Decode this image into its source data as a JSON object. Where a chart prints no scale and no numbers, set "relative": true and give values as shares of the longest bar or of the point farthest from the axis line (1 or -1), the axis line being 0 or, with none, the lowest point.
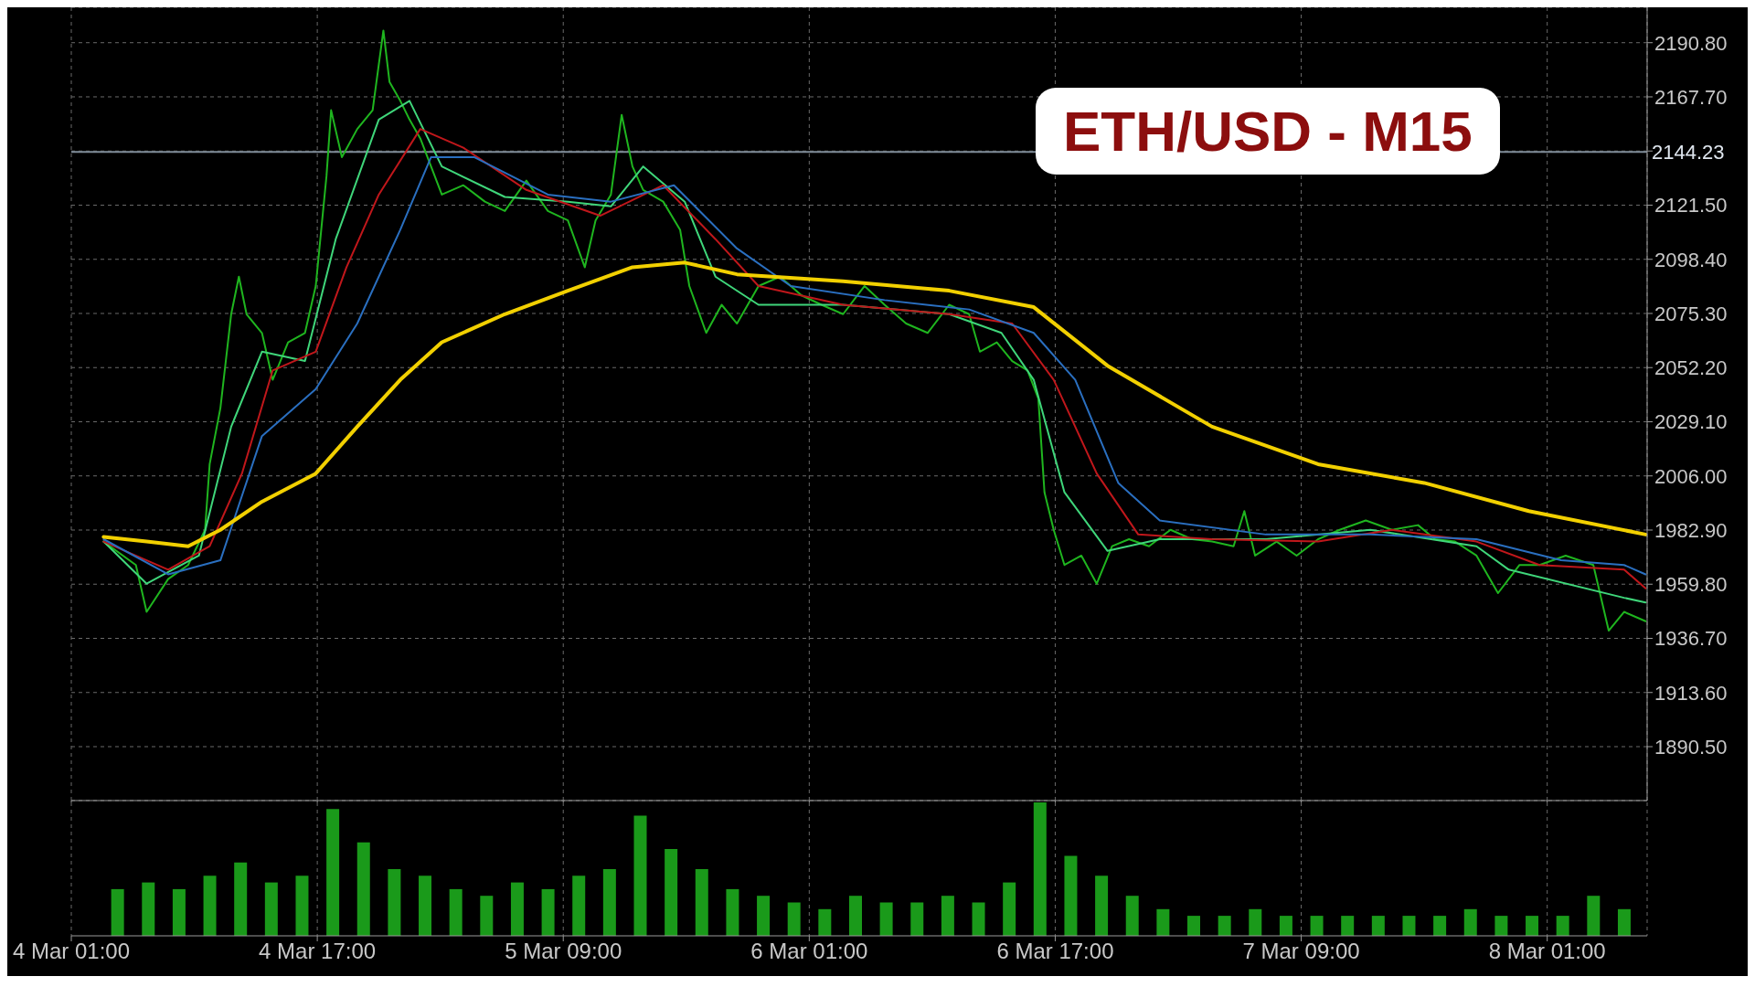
{
  "chart_data": [
    {
      "type": "line",
      "title": "ETH/USD - M15",
      "xlim": [
        "--03-04T01:00",
        "--03-08T07:30"
      ],
      "xticks": [
        "--03-04T01:00",
        "--03-04T17:00",
        "--03-05T09:00",
        "--03-06T01:00",
        "--03-06T17:00",
        "--03-07T09:00",
        "--03-08T01:00"
      ],
      "ylim": [
        1867.5,
        2205.9
      ],
      "yticks": [
        {
          "value": 1890.5,
          "label": "1890.50"
        },
        {
          "value": 1913.6,
          "label": "1913.60"
        },
        {
          "value": 1936.7,
          "label": "1936.70"
        },
        {
          "value": 1959.8,
          "label": "1959.80"
        },
        {
          "value": 1982.9,
          "label": "1982.90"
        },
        {
          "value": 2006,
          "label": "2006.00"
        },
        {
          "value": 2029.1,
          "label": "2029.10"
        },
        {
          "value": 2052.2,
          "label": "2052.20"
        },
        {
          "value": 2075.3,
          "label": "2075.30"
        },
        {
          "value": 2098.4,
          "label": "2098.40"
        },
        {
          "value": 2121.5,
          "label": "2121.50"
        },
        {
          "value": 2144.6,
          "label": null
        },
        {
          "value": 2167.7,
          "label": "2167.70"
        },
        {
          "value": 2190.8,
          "label": "2190.80"
        }
      ],
      "grid": true,
      "tick_labels": "y",
      "ref_lines": [
        {
          "axis": "y",
          "value": 2144.23,
          "label": "2144.23",
          "color": "#7f8c99"
        }
      ],
      "series": [
        {
          "color": "#1fb51f",
          "x": [
            "--03-04T03:06",
            "--03-04T05:12",
            "--03-04T05:54",
            "--03-04T07:18",
            "--03-04T08:36",
            "--03-04T09:42",
            "--03-04T10:00",
            "--03-04T10:42",
            "--03-04T11:24",
            "--03-04T11:54",
            "--03-04T12:24",
            "--03-04T13:24",
            "--03-04T14:06",
            "--03-04T15:06",
            "--03-04T16:12",
            "--03-04T16:54",
            "--03-04T17:36",
            "--03-04T17:54",
            "--03-04T18:36",
            "--03-04T19:36",
            "--03-04T20:36",
            "--03-04T21:18",
            "--03-04T21:42",
            "--03-04T22:24",
            "--03-04T23:00",
            "--03-04T23:42",
            "--03-05T00:24",
            "--03-05T01:06",
            "--03-05T02:30",
            "--03-05T03:54",
            "--03-05T05:12",
            "--03-05T06:36",
            "--03-05T08:00",
            "--03-05T09:18",
            "--03-05T10:24",
            "--03-05T11:06",
            "--03-05T12:06",
            "--03-05T12:48",
            "--03-05T13:30",
            "--03-05T14:12",
            "--03-05T15:30",
            "--03-05T16:36",
            "--03-05T17:12",
            "--03-05T18:18",
            "--03-05T19:18",
            "--03-05T20:18",
            "--03-05T21:42",
            "--03-05T23:06",
            "--03-06T00:30",
            "--03-06T01:48",
            "--03-06T03:12",
            "--03-06T04:36",
            "--03-06T05:54",
            "--03-06T07:18",
            "--03-06T08:42",
            "--03-06T10:06",
            "--03-06T11:24",
            "--03-06T12:06",
            "--03-06T13:12",
            "--03-06T14:12",
            "--03-06T15:12",
            "--03-06T15:54",
            "--03-06T16:18",
            "--03-06T16:54",
            "--03-06T17:36",
            "--03-06T18:42",
            "--03-06T19:42",
            "--03-06T20:42",
            "--03-06T21:48",
            "--03-06T23:06",
            "--03-07T00:30",
            "--03-07T01:54",
            "--03-07T03:12",
            "--03-07T04:36",
            "--03-07T05:18",
            "--03-07T06:00",
            "--03-07T07:24",
            "--03-07T08:42",
            "--03-07T10:06",
            "--03-07T11:30",
            "--03-07T13:12",
            "--03-07T14:54",
            "--03-07T16:36",
            "--03-07T17:42",
            "--03-07T19:00",
            "--03-07T20:24",
            "--03-07T21:48",
            "--03-07T23:12",
            "--03-08T00:30",
            "--03-08T02:12",
            "--03-08T04:00",
            "--03-08T05:00",
            "--03-08T06:00",
            "--03-08T07:24"
          ],
          "values": [
            1978,
            1968,
            1948,
            1962,
            1968,
            1983,
            2011,
            2035,
            2075,
            2091,
            2075,
            2067,
            2047,
            2063,
            2067,
            2087,
            2134,
            2162,
            2142,
            2154,
            2162,
            2196,
            2174,
            2166,
            2158,
            2150,
            2138,
            2126,
            2130,
            2123,
            2119,
            2132,
            2119,
            2115,
            2095,
            2115,
            2126,
            2160,
            2138,
            2128,
            2123,
            2111,
            2087,
            2067,
            2079,
            2071,
            2087,
            2091,
            2083,
            2079,
            2075,
            2087,
            2079,
            2071,
            2067,
            2079,
            2075,
            2059,
            2063,
            2055,
            2051,
            2039,
            1999,
            1983,
            1968,
            1972,
            1960,
            1976,
            1979,
            1976,
            1983,
            1979,
            1978,
            1976,
            1991,
            1972,
            1978,
            1972,
            1979,
            1983,
            1987,
            1983,
            1985,
            1979,
            1978,
            1972,
            1956,
            1968,
            1968,
            1972,
            1968,
            1940,
            1948,
            1944
          ]
        },
        {
          "color": "#3fd67a",
          "x": [
            "--03-04T03:06",
            "--03-04T05:54",
            "--03-04T09:18",
            "--03-04T11:24",
            "--03-04T13:24",
            "--03-04T16:12",
            "--03-04T18:12",
            "--03-04T21:00",
            "--03-04T23:00",
            "--03-05T01:06",
            "--03-05T05:12",
            "--03-05T09:18",
            "--03-05T12:06",
            "--03-05T14:12",
            "--03-05T16:54",
            "--03-05T18:54",
            "--03-05T21:42",
            "--03-06T03:12",
            "--03-06T10:06",
            "--03-06T13:30",
            "--03-06T15:36",
            "--03-06T17:36",
            "--03-06T20:24",
            "--03-06T23:48",
            "--03-07T06:42",
            "--03-07T13:30",
            "--03-07T20:24",
            "--03-07T22:30",
            "--03-08T06:00",
            "--03-08T07:24"
          ],
          "values": [
            1978,
            1960,
            1972,
            2027,
            2059,
            2055,
            2107,
            2158,
            2166,
            2138,
            2125,
            2123,
            2121,
            2138,
            2123,
            2091,
            2079,
            2079,
            2075,
            2067,
            2047,
            1999,
            1974,
            1979,
            1979,
            1983,
            1976,
            1966,
            1954,
            1952
          ]
        },
        {
          "color": "#c0171b",
          "x": [
            "--03-04T03:06",
            "--03-04T07:18",
            "--03-04T10:00",
            "--03-04T12:06",
            "--03-04T14:06",
            "--03-04T16:54",
            "--03-04T18:54",
            "--03-04T21:00",
            "--03-04T23:42",
            "--03-05T02:30",
            "--03-05T06:36",
            "--03-05T11:24",
            "--03-05T15:30",
            "--03-05T18:54",
            "--03-05T21:42",
            "--03-06T03:12",
            "--03-06T10:06",
            "--03-06T14:12",
            "--03-06T16:54",
            "--03-06T19:42",
            "--03-06T22:24",
            "--03-07T03:12",
            "--03-07T10:06",
            "--03-07T14:54",
            "--03-07T20:24",
            "--03-08T00:30",
            "--03-08T06:00",
            "--03-08T07:24"
          ],
          "values": [
            1978,
            1966,
            1976,
            2007,
            2051,
            2059,
            2095,
            2126,
            2154,
            2146,
            2128,
            2117,
            2130,
            2107,
            2087,
            2079,
            2075,
            2071,
            2047,
            2007,
            1981,
            1979,
            1978,
            1983,
            1978,
            1968,
            1966,
            1958
          ]
        },
        {
          "color": "#2a6fc0",
          "x": [
            "--03-04T03:06",
            "--03-04T07:18",
            "--03-04T10:42",
            "--03-04T13:24",
            "--03-04T16:54",
            "--03-04T19:36",
            "--03-04T22:24",
            "--03-05T00:24",
            "--03-05T03:12",
            "--03-05T08:00",
            "--03-05T12:06",
            "--03-05T16:12",
            "--03-05T20:18",
            "--03-05T23:48",
            "--03-06T05:54",
            "--03-06T11:24",
            "--03-06T15:36",
            "--03-06T18:18",
            "--03-06T21:06",
            "--03-06T23:48",
            "--03-07T06:42",
            "--03-07T13:30",
            "--03-07T20:24",
            "--03-08T01:54",
            "--03-08T06:00",
            "--03-08T07:24"
          ],
          "values": [
            1979,
            1964,
            1970,
            2023,
            2043,
            2071,
            2111,
            2142,
            2142,
            2126,
            2123,
            2130,
            2103,
            2087,
            2081,
            2077,
            2067,
            2047,
            2003,
            1987,
            1981,
            1981,
            1979,
            1970,
            1968,
            1964
          ]
        },
        {
          "color": "#f2d000",
          "x": [
            "--03-04T03:06",
            "--03-04T05:54",
            "--03-04T08:36",
            "--03-04T10:42",
            "--03-04T13:24",
            "--03-04T16:54",
            "--03-04T19:36",
            "--03-04T22:24",
            "--03-05T01:06",
            "--03-05T05:12",
            "--03-05T09:18",
            "--03-05T13:30",
            "--03-05T16:54",
            "--03-05T20:18",
            "--03-06T03:12",
            "--03-06T10:06",
            "--03-06T15:36",
            "--03-06T20:24",
            "--03-07T03:12",
            "--03-07T10:06",
            "--03-07T17:00",
            "--03-07T23:48",
            "--03-08T07:24"
          ],
          "values": [
            1980,
            1978,
            1976,
            1983,
            1995,
            2007,
            2027,
            2047,
            2063,
            2075,
            2085,
            2095,
            2097,
            2092,
            2089,
            2085,
            2078,
            2053,
            2027,
            2011,
            2003,
            1991,
            1981
          ]
        }
      ]
    },
    {
      "type": "bar",
      "relative": true,
      "color": "#1a9a1a",
      "xlim": [
        "--03-04T01:00",
        "--03-08T07:30"
      ],
      "xticks": [
        {
          "value": "--03-04T01:00",
          "label": "4 Mar 01:00"
        },
        {
          "value": "--03-04T17:00",
          "label": "4 Mar 17:00"
        },
        {
          "value": "--03-05T09:00",
          "label": "5 Mar 09:00"
        },
        {
          "value": "--03-06T01:00",
          "label": "6 Mar 01:00"
        },
        {
          "value": "--03-06T17:00",
          "label": "6 Mar 17:00"
        },
        {
          "value": "--03-07T09:00",
          "label": "7 Mar 09:00"
        },
        {
          "value": "--03-08T01:00",
          "label": "8 Mar 01:00"
        }
      ],
      "grid": "x",
      "tick_labels": "x",
      "x": [
        "--03-04T04:00",
        "--03-04T06:00",
        "--03-04T08:00",
        "--03-04T10:00",
        "--03-04T12:00",
        "--03-04T14:00",
        "--03-04T16:00",
        "--03-04T18:00",
        "--03-04T20:00",
        "--03-04T22:00",
        "--03-05T00:00",
        "--03-05T02:00",
        "--03-05T04:00",
        "--03-05T06:00",
        "--03-05T08:00",
        "--03-05T10:00",
        "--03-05T12:00",
        "--03-05T14:00",
        "--03-05T16:00",
        "--03-05T18:00",
        "--03-05T20:00",
        "--03-05T22:00",
        "--03-06T00:00",
        "--03-06T02:00",
        "--03-06T04:00",
        "--03-06T06:00",
        "--03-06T08:00",
        "--03-06T10:00",
        "--03-06T12:00",
        "--03-06T14:00",
        "--03-06T16:00",
        "--03-06T18:00",
        "--03-06T20:00",
        "--03-06T22:00",
        "--03-07T00:00",
        "--03-07T02:00",
        "--03-07T04:00",
        "--03-07T06:00",
        "--03-07T08:00",
        "--03-07T10:00",
        "--03-07T12:00",
        "--03-07T14:00",
        "--03-07T16:00",
        "--03-07T18:00",
        "--03-07T20:00",
        "--03-07T22:00",
        "--03-08T00:00",
        "--03-08T02:00",
        "--03-08T04:00",
        "--03-08T06:00"
      ],
      "values": [
        0.35,
        0.4,
        0.35,
        0.45,
        0.55,
        0.4,
        0.45,
        0.95,
        0.7,
        0.5,
        0.45,
        0.35,
        0.3,
        0.4,
        0.35,
        0.45,
        0.5,
        0.9,
        0.65,
        0.5,
        0.35,
        0.3,
        0.25,
        0.2,
        0.3,
        0.25,
        0.25,
        0.3,
        0.25,
        0.4,
        1,
        0.6,
        0.45,
        0.3,
        0.2,
        0.15,
        0.15,
        0.2,
        0.15,
        0.15,
        0.15,
        0.15,
        0.15,
        0.15,
        0.2,
        0.15,
        0.15,
        0.15,
        0.3,
        0.2
      ]
    }
  ]
}
